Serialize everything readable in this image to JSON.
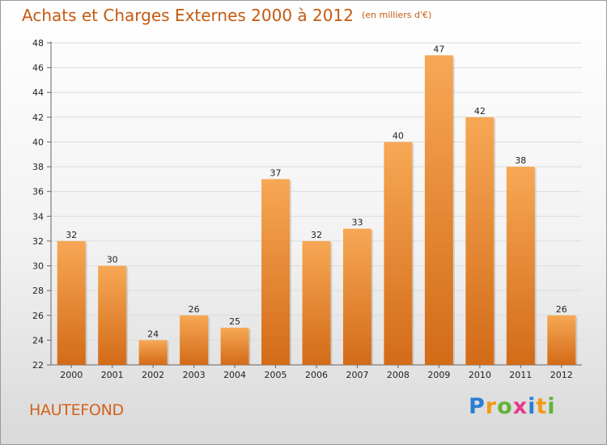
{
  "header": {
    "title": "Achats et Charges Externes 2000 à 2012",
    "unit": "(en milliers d'€)"
  },
  "footer": {
    "place": "HAUTEFOND",
    "logo": "Proxiti"
  },
  "colors": {
    "bar_light": "#f7a855",
    "bar_dark": "#d9731c",
    "title": "#c45a10"
  },
  "chart_data": {
    "type": "bar",
    "title": "Achats et Charges Externes 2000 à 2012",
    "subtitle": "(en milliers d'€)",
    "xlabel": "",
    "ylabel": "",
    "categories": [
      "2000",
      "2001",
      "2002",
      "2003",
      "2004",
      "2005",
      "2006",
      "2007",
      "2008",
      "2009",
      "2010",
      "2011",
      "2012"
    ],
    "values": [
      32,
      30,
      24,
      26,
      25,
      37,
      32,
      33,
      40,
      47,
      42,
      38,
      26
    ],
    "ylim": [
      22,
      48
    ],
    "yticks": [
      22,
      24,
      26,
      28,
      30,
      32,
      34,
      36,
      38,
      40,
      42,
      44,
      46,
      48
    ],
    "grid": true,
    "legend": "none"
  }
}
